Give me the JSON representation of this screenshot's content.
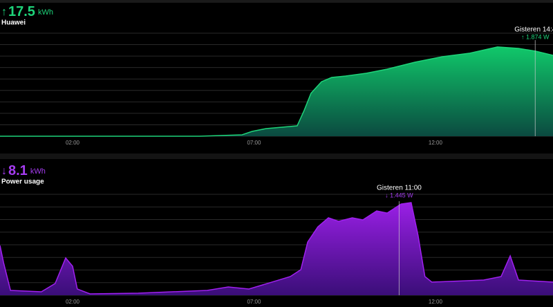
{
  "chart_data": [
    {
      "type": "area",
      "summary": {
        "arrow": "↑",
        "value": 17.5,
        "unit": "kWh",
        "label": "Huawei"
      },
      "x": [
        0,
        5.5,
        6.67,
        6.95,
        7.33,
        8.19,
        8.38,
        8.57,
        8.86,
        9.14,
        9.52,
        10.1,
        10.67,
        11.43,
        12.19,
        12.95,
        13.71,
        14.29,
        14.76,
        15.24
      ],
      "series": [
        {
          "name": "Huawei",
          "color": "#1ed47a",
          "values": [
            0,
            0,
            30,
            105,
            166,
            227,
            560,
            937,
            1190,
            1284,
            1314,
            1375,
            1465,
            1616,
            1737,
            1813,
            1949,
            1918,
            1858,
            1767
          ]
        }
      ],
      "xlim": [
        0,
        15.24
      ],
      "xticks": [
        {
          "value": 2,
          "label": "02:00"
        },
        {
          "value": 7,
          "label": "07:00"
        },
        {
          "value": 12,
          "label": "12:00"
        }
      ],
      "ylim": [
        0,
        2250
      ],
      "yticks": [
        0,
        250,
        500,
        750,
        1000,
        1250,
        1500,
        1750,
        2000,
        2250
      ],
      "grid": true,
      "tooltip": {
        "x": 14.75,
        "label": "Gisteren 14:4",
        "value": 1874,
        "value_label": "↑ 1.874 W"
      }
    },
    {
      "type": "area",
      "summary": {
        "arrow": "↓",
        "value": 8.1,
        "unit": "kWh",
        "label": "Power usage"
      },
      "x": [
        0,
        0.1,
        0.29,
        1.14,
        1.52,
        1.81,
        2.0,
        2.13,
        2.48,
        3.81,
        5.71,
        6.29,
        6.86,
        7.24,
        8.0,
        8.29,
        8.48,
        8.76,
        9.05,
        9.33,
        9.71,
        10.0,
        10.38,
        10.67,
        11.05,
        11.33,
        11.52,
        11.71,
        11.9,
        13.33,
        13.81,
        14.06,
        14.29,
        15.24
      ],
      "series": [
        {
          "name": "Power usage",
          "color": "#a020f0",
          "values": [
            789,
            515,
            77,
            55,
            186,
            591,
            460,
            99,
            22,
            33,
            77,
            131,
            99,
            164,
            296,
            405,
            843,
            1084,
            1227,
            1172,
            1227,
            1194,
            1336,
            1303,
            1446,
            1468,
            953,
            296,
            208,
            241,
            296,
            624,
            241,
            208
          ]
        }
      ],
      "xlim": [
        0,
        15.24
      ],
      "xticks": [
        {
          "value": 2,
          "label": "02:00"
        },
        {
          "value": 7,
          "label": "07:00"
        },
        {
          "value": 12,
          "label": "12:00"
        }
      ],
      "ylim": [
        0,
        1600
      ],
      "yticks": [
        0,
        200,
        400,
        600,
        800,
        1000,
        1200,
        1400,
        1600
      ],
      "grid": true,
      "tooltip": {
        "x": 11.0,
        "label": "Gisteren 11:00",
        "value": 1445,
        "value_label": "↓ 1.445 W"
      }
    }
  ]
}
